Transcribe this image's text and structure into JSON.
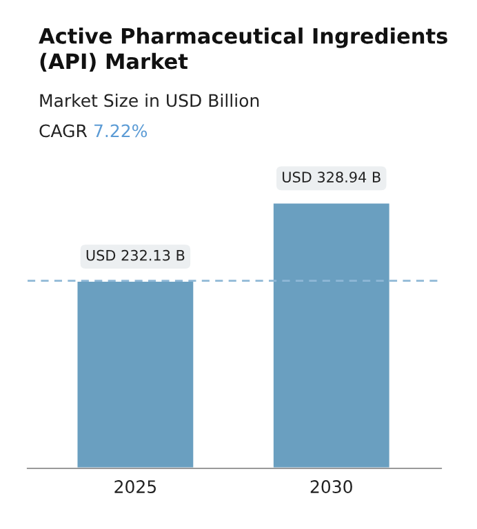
{
  "chart_data": {
    "type": "bar",
    "title": "Active Pharmaceutical Ingredients\n(API) Market",
    "subtitle": "Market Size in USD Billion",
    "annotations": [
      "CAGR",
      "7.22%"
    ],
    "categories": [
      "2025",
      "2030"
    ],
    "series": [
      {
        "color": "#6a9fc0",
        "values": [
          232.13,
          328.94
        ],
        "value_labels": [
          "USD 232.13 B",
          "USD 328.94 B"
        ]
      }
    ],
    "ref_lines": [
      {
        "axis": "y",
        "value": 232.13,
        "color": "#8fb8d6",
        "line_style": "dashed"
      }
    ],
    "grid": false,
    "legend": false
  }
}
